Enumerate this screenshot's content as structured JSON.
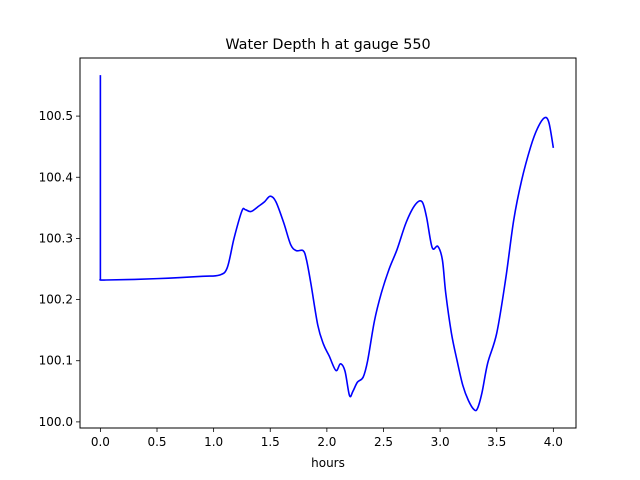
{
  "chart_data": {
    "type": "line",
    "title": "Water Depth h at gauge 550",
    "xlabel": "hours",
    "ylabel": "",
    "xlim": [
      -0.18,
      4.2
    ],
    "ylim": [
      99.99,
      100.595
    ],
    "x_ticks": [
      0.0,
      0.5,
      1.0,
      1.5,
      2.0,
      2.5,
      3.0,
      3.5,
      4.0
    ],
    "x_tick_labels": [
      "0.0",
      "0.5",
      "1.0",
      "1.5",
      "2.0",
      "2.5",
      "3.0",
      "3.5",
      "4.0"
    ],
    "y_ticks": [
      100.0,
      100.1,
      100.2,
      100.3,
      100.4,
      100.5
    ],
    "y_tick_labels": [
      "100.0",
      "100.1",
      "100.2",
      "100.3",
      "100.4",
      "100.5"
    ],
    "grid": false,
    "series": [
      {
        "color": "#0000ff",
        "x": [
          0.0,
          0.0,
          0.0,
          0.05,
          0.3,
          0.6,
          0.9,
          1.05,
          1.12,
          1.18,
          1.25,
          1.28,
          1.33,
          1.4,
          1.45,
          1.5,
          1.55,
          1.62,
          1.68,
          1.73,
          1.79,
          1.82,
          1.86,
          1.92,
          1.97,
          2.02,
          2.08,
          2.12,
          2.16,
          2.2,
          2.23,
          2.27,
          2.32,
          2.36,
          2.42,
          2.48,
          2.55,
          2.62,
          2.7,
          2.78,
          2.84,
          2.88,
          2.93,
          2.98,
          3.02,
          3.05,
          3.1,
          3.15,
          3.2,
          3.25,
          3.3,
          3.33,
          3.37,
          3.42,
          3.5,
          3.58,
          3.65,
          3.72,
          3.8,
          3.86,
          3.92,
          3.96,
          4.0
        ],
        "y": [
          100.567,
          100.233,
          100.232,
          100.232,
          100.233,
          100.235,
          100.238,
          100.24,
          100.252,
          100.3,
          100.345,
          100.347,
          100.344,
          100.353,
          100.36,
          100.369,
          100.36,
          100.325,
          100.29,
          100.28,
          100.28,
          100.265,
          100.225,
          100.158,
          100.127,
          100.108,
          100.084,
          100.095,
          100.083,
          100.043,
          100.05,
          100.065,
          100.073,
          100.1,
          100.165,
          100.21,
          100.25,
          100.282,
          100.326,
          100.355,
          100.36,
          100.335,
          100.285,
          100.287,
          100.265,
          100.21,
          100.145,
          100.1,
          100.06,
          100.035,
          100.02,
          100.022,
          100.048,
          100.096,
          100.145,
          100.235,
          100.33,
          100.395,
          100.45,
          100.48,
          100.497,
          100.49,
          100.448
        ]
      }
    ]
  }
}
